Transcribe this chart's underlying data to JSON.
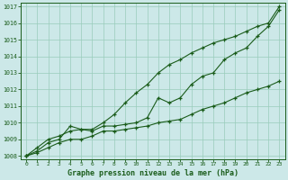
{
  "title": "Graphe pression niveau de la mer (hPa)",
  "bg_color": "#cce8e8",
  "grid_color": "#99ccbb",
  "line_color": "#1a5c1a",
  "xlim": [
    -0.5,
    23.5
  ],
  "ylim": [
    1007.8,
    1017.2
  ],
  "xticks": [
    0,
    1,
    2,
    3,
    4,
    5,
    6,
    7,
    8,
    9,
    10,
    11,
    12,
    13,
    14,
    15,
    16,
    17,
    18,
    19,
    20,
    21,
    22,
    23
  ],
  "yticks": [
    1008,
    1009,
    1010,
    1011,
    1012,
    1013,
    1014,
    1015,
    1016,
    1017
  ],
  "line1_x": [
    0,
    1,
    2,
    3,
    4,
    5,
    6,
    7,
    8,
    9,
    10,
    11,
    12,
    13,
    14,
    15,
    16,
    17,
    18,
    19,
    20,
    21,
    22,
    23
  ],
  "line1_y": [
    1008.0,
    1008.5,
    1009.0,
    1009.2,
    1009.5,
    1009.6,
    1009.6,
    1010.0,
    1010.5,
    1011.2,
    1011.8,
    1012.3,
    1013.0,
    1013.5,
    1013.8,
    1014.2,
    1014.5,
    1014.8,
    1015.0,
    1015.2,
    1015.5,
    1015.8,
    1016.0,
    1017.0
  ],
  "line2_x": [
    0,
    1,
    2,
    3,
    4,
    5,
    6,
    7,
    8,
    9,
    10,
    11,
    12,
    13,
    14,
    15,
    16,
    17,
    18,
    19,
    20,
    21,
    22,
    23
  ],
  "line2_y": [
    1008.0,
    1008.3,
    1008.8,
    1009.0,
    1009.8,
    1009.6,
    1009.5,
    1009.8,
    1009.8,
    1009.9,
    1010.0,
    1010.3,
    1011.5,
    1011.2,
    1011.5,
    1012.3,
    1012.8,
    1013.0,
    1013.8,
    1014.2,
    1014.5,
    1015.2,
    1015.8,
    1016.8
  ],
  "line3_x": [
    0,
    1,
    2,
    3,
    4,
    5,
    6,
    7,
    8,
    9,
    10,
    11,
    12,
    13,
    14,
    15,
    16,
    17,
    18,
    19,
    20,
    21,
    22,
    23
  ],
  "line3_y": [
    1008.0,
    1008.2,
    1008.5,
    1008.8,
    1009.0,
    1009.0,
    1009.2,
    1009.5,
    1009.5,
    1009.6,
    1009.7,
    1009.8,
    1010.0,
    1010.1,
    1010.2,
    1010.5,
    1010.8,
    1011.0,
    1011.2,
    1011.5,
    1011.8,
    1012.0,
    1012.2,
    1012.5
  ]
}
